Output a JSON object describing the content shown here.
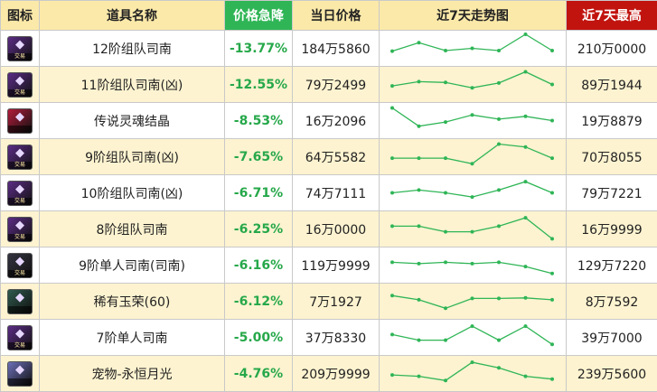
{
  "headers": {
    "icon": "图标",
    "name": "道具名称",
    "drop": "价格急降",
    "today": "当日价格",
    "trend": "近7天走势图",
    "max": "近7天最高"
  },
  "colors": {
    "header_bg": "#fbe9a9",
    "header_drop_bg": "#2fb556",
    "header_max_bg": "#c1140f",
    "drop_text": "#26a84a",
    "row_alt_bg": "#fdf3d0",
    "trend_line": "#2fb556"
  },
  "rows": [
    {
      "icon": "purple-cable-icon",
      "icon_color": "#5b2c86",
      "icon_tag": "交易",
      "name": "12阶组队司南",
      "drop": "-13.77%",
      "today": "184万5860",
      "trend": [
        60,
        30,
        58,
        50,
        58,
        0,
        58
      ],
      "max": "210万0000"
    },
    {
      "icon": "purple-cable-icon",
      "icon_color": "#5b2c86",
      "icon_tag": "交易",
      "name": "11阶组队司南(凶)",
      "drop": "-12.55%",
      "today": "79万2499",
      "trend": [
        55,
        40,
        43,
        62,
        45,
        5,
        50
      ],
      "max": "89万1944"
    },
    {
      "icon": "red-crystal-icon",
      "icon_color": "#b21c3b",
      "icon_tag": "",
      "name": "传说灵魂结晶",
      "drop": "-8.53%",
      "today": "16万2096",
      "trend": [
        5,
        70,
        55,
        30,
        45,
        35,
        50
      ],
      "max": "19万8879"
    },
    {
      "icon": "purple-cable-icon",
      "icon_color": "#5b2c86",
      "icon_tag": "交易",
      "name": "9阶组队司南(凶)",
      "drop": "-7.65%",
      "today": "64万5582",
      "trend": [
        55,
        55,
        55,
        75,
        5,
        15,
        55
      ],
      "max": "70万8055"
    },
    {
      "icon": "purple-cable-icon",
      "icon_color": "#5b2c86",
      "icon_tag": "交易",
      "name": "10阶组队司南(凶)",
      "drop": "-6.71%",
      "today": "74万7111",
      "trend": [
        50,
        40,
        50,
        65,
        40,
        10,
        50
      ],
      "max": "79万7221"
    },
    {
      "icon": "purple-cable-icon",
      "icon_color": "#5b2c86",
      "icon_tag": "交易",
      "name": "8阶组队司南",
      "drop": "-6.25%",
      "today": "16万0000",
      "trend": [
        40,
        40,
        60,
        60,
        40,
        10,
        85
      ],
      "max": "16万9999"
    },
    {
      "icon": "dark-cable-icon",
      "icon_color": "#333340",
      "icon_tag": "交易",
      "name": "9阶单人司南(司南)",
      "drop": "-6.16%",
      "today": "119万9999",
      "trend": [
        40,
        45,
        40,
        45,
        40,
        55,
        80
      ],
      "max": "129万7220"
    },
    {
      "icon": "jade-orb-icon",
      "icon_color": "#2f5a4d",
      "icon_tag": "",
      "name": "稀有玉荣(60)",
      "drop": "-6.12%",
      "today": "7万1927",
      "trend": [
        30,
        45,
        75,
        40,
        40,
        38,
        45
      ],
      "max": "8万7592"
    },
    {
      "icon": "purple-cable-icon",
      "icon_color": "#5b2c86",
      "icon_tag": "交易",
      "name": "7阶单人司南",
      "drop": "-5.00%",
      "today": "37万8330",
      "trend": [
        40,
        60,
        60,
        10,
        60,
        10,
        75
      ],
      "max": "39万7000"
    },
    {
      "icon": "moon-pet-icon",
      "icon_color": "#6c6fb8",
      "icon_tag": "",
      "name": "宠物-永恒月光",
      "drop": "-4.76%",
      "today": "209万9999",
      "trend": [
        55,
        60,
        75,
        10,
        30,
        60,
        70
      ],
      "max": "239万5600"
    }
  ]
}
